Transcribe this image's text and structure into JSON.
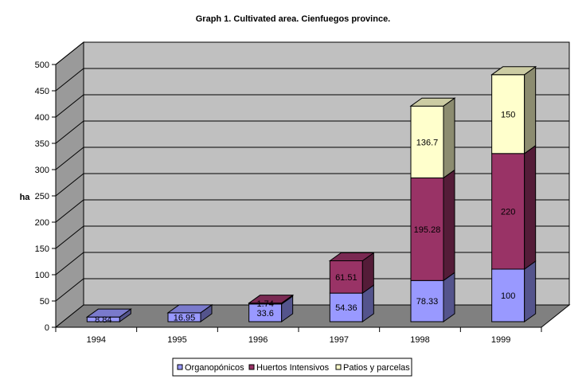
{
  "chart_data": {
    "type": "bar",
    "stacked": true,
    "three_d": true,
    "title": "Graph 1. Cultivated area. Cienfuegos province.",
    "xlabel": "",
    "ylabel": "ha",
    "ylim": [
      0,
      500
    ],
    "yticks": [
      0,
      50,
      100,
      150,
      200,
      250,
      300,
      350,
      400,
      450,
      500
    ],
    "grid": true,
    "legend_position": "bottom",
    "categories": [
      "1994",
      "1995",
      "1996",
      "1997",
      "1998",
      "1999"
    ],
    "series": [
      {
        "name": "Organopónicos",
        "color": "#9999ff",
        "values": [
          8.84,
          16.95,
          33.6,
          54.36,
          78.33,
          100
        ],
        "labels": [
          "8.84",
          "16.95",
          "33.6",
          "54.36",
          "78.33",
          "100"
        ]
      },
      {
        "name": "Huertos Intensivos",
        "color": "#993366",
        "values": [
          0,
          0,
          1.74,
          61.51,
          195.28,
          220
        ],
        "labels": [
          "",
          "",
          "1.74",
          "61.51",
          "195.28",
          "220"
        ]
      },
      {
        "name": "Patios y parcelas",
        "color": "#ffffcc",
        "values": [
          0,
          0,
          0,
          0,
          136.7,
          150
        ],
        "labels": [
          "",
          "",
          "",
          "",
          "136.7",
          "150"
        ]
      }
    ]
  }
}
